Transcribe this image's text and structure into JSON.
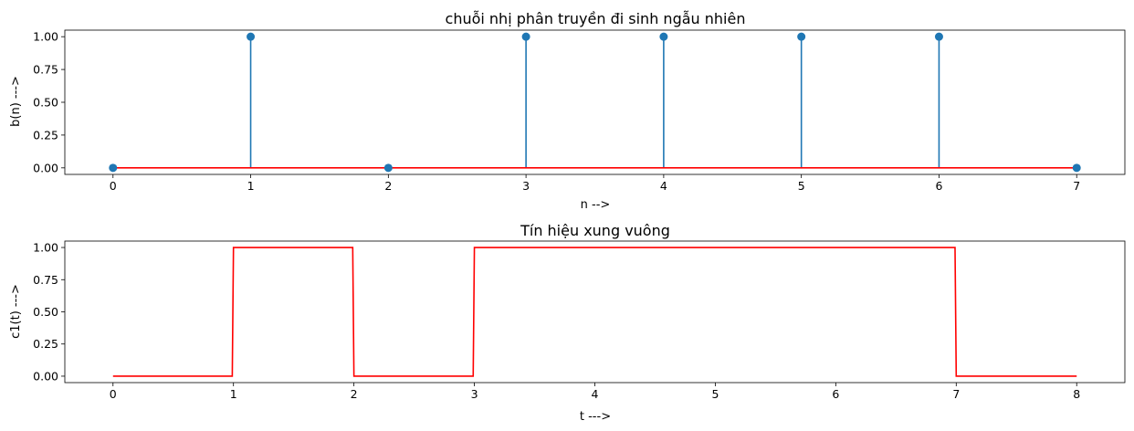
{
  "chart_data": [
    {
      "type": "stem",
      "title": "chuỗi nhị phân truyền đi sinh ngẫu nhiên",
      "xlabel": "n -->",
      "ylabel": "b(n) --->",
      "x": [
        0,
        1,
        2,
        3,
        4,
        5,
        6,
        7
      ],
      "values": [
        0,
        1,
        0,
        1,
        1,
        1,
        1,
        0
      ],
      "xlim": [
        -0.35,
        7.35
      ],
      "ylim": [
        -0.05,
        1.05
      ],
      "xticks": [
        0,
        1,
        2,
        3,
        4,
        5,
        6,
        7
      ],
      "xtick_labels": [
        "0",
        "1",
        "2",
        "3",
        "4",
        "5",
        "6",
        "7"
      ],
      "yticks": [
        0,
        0.25,
        0.5,
        0.75,
        1.0
      ],
      "ytick_labels": [
        "0.00",
        "0.25",
        "0.50",
        "0.75",
        "1.00"
      ],
      "baseline": 0,
      "grid": false,
      "colors": {
        "stem": "#1f77b4",
        "marker": "#1f77b4",
        "baseline": "#ff0000"
      }
    },
    {
      "type": "line",
      "title": "Tín hiệu xung vuông",
      "xlabel": "t --->",
      "ylabel": "c1(t) --->",
      "x": [
        0,
        0.99,
        1.0,
        1.99,
        2.0,
        2.99,
        3.0,
        6.99,
        7.0,
        8.0
      ],
      "values": [
        0,
        0,
        1,
        1,
        0,
        0,
        1,
        1,
        0,
        0
      ],
      "xlim": [
        -0.4,
        8.4
      ],
      "ylim": [
        -0.05,
        1.05
      ],
      "xticks": [
        0,
        1,
        2,
        3,
        4,
        5,
        6,
        7,
        8
      ],
      "xtick_labels": [
        "0",
        "1",
        "2",
        "3",
        "4",
        "5",
        "6",
        "7",
        "8"
      ],
      "yticks": [
        0,
        0.25,
        0.5,
        0.75,
        1.0
      ],
      "ytick_labels": [
        "0.00",
        "0.25",
        "0.50",
        "0.75",
        "1.00"
      ],
      "grid": false,
      "colors": {
        "line": "#ff0000"
      }
    }
  ]
}
